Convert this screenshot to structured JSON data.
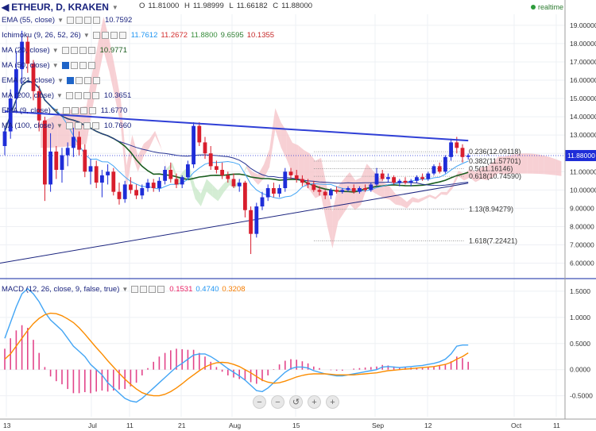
{
  "header": {
    "symbol_label": "ETHEUR, D, KRAKEN",
    "ohlc": {
      "o_label": "O",
      "o": "11.81000",
      "h_label": "H",
      "h": "11.98999",
      "l_label": "L",
      "l": "11.66182",
      "c_label": "C",
      "c": "11.88000"
    },
    "realtime_label": "realtime",
    "colors": {
      "title": "#1a237e",
      "realtime_dot": "#2e9c3c"
    }
  },
  "indicators": [
    {
      "label": "EMA (55, close)",
      "values": [
        {
          "v": "10.7592",
          "color": "#1a237e"
        }
      ]
    },
    {
      "label": "Ichimoku (9, 26, 52, 26)",
      "values": [
        {
          "v": "11.7612",
          "color": "#2196f3"
        },
        {
          "v": "11.2672",
          "color": "#d32f2f"
        },
        {
          "v": "11.8800",
          "color": "#388e3c"
        },
        {
          "v": "9.6595",
          "color": "#2e7d32"
        },
        {
          "v": "10.1355",
          "color": "#c62828"
        }
      ]
    },
    {
      "label": "MA (20, close)",
      "values": [
        {
          "v": "10.9771",
          "color": "#1b5e20"
        }
      ]
    },
    {
      "label": "MA (50, close)",
      "values": []
    },
    {
      "label": "EMA (21, close)",
      "values": []
    },
    {
      "label": "MA (200, close)",
      "values": [
        {
          "v": "10.3651",
          "color": "#1a237e"
        }
      ]
    },
    {
      "label": "EMA (9, close)",
      "values": [
        {
          "v": "11.6770",
          "color": "#1a237e"
        }
      ]
    },
    {
      "label": "MA (100, close)",
      "values": [
        {
          "v": "10.7660",
          "color": "#1a237e"
        }
      ]
    }
  ],
  "macd_header": {
    "label": "MACD (12, 26, close, 9, false, true)",
    "values": [
      {
        "v": "0.1531",
        "color": "#e91e63"
      },
      {
        "v": "0.4740",
        "color": "#2196f3"
      },
      {
        "v": "0.3208",
        "color": "#f57c00"
      }
    ]
  },
  "chart_data": {
    "type": "candlestick",
    "price_axis": {
      "ticks": [
        "19.00000",
        "18.00000",
        "17.00000",
        "16.00000",
        "15.00000",
        "14.00000",
        "13.00000",
        "12.00000",
        "11.00000",
        "10.00000",
        "9.00000",
        "8.00000",
        "7.00000",
        "6.00000"
      ],
      "tick_values": [
        19,
        18,
        17,
        16,
        15,
        14,
        13,
        12,
        11,
        10,
        9,
        8,
        7,
        6
      ],
      "range": [
        5.2,
        19.6
      ],
      "last_price": 11.88,
      "last_price_label": "11.88000"
    },
    "time_axis": {
      "ticks": [
        "13",
        "Jul",
        "11",
        "21",
        "Aug",
        "15",
        "Sep",
        "12",
        "Oct",
        "11"
      ],
      "tick_x": [
        8,
        115,
        163,
        228,
        292,
        372,
        472,
        538,
        647,
        700
      ]
    },
    "candles_ohlc": [
      [
        12.4,
        13.4,
        11.9,
        13.2
      ],
      [
        13.2,
        15.5,
        12.8,
        15.0
      ],
      [
        15.0,
        17.6,
        14.2,
        16.6
      ],
      [
        16.6,
        18.7,
        15.8,
        18.1
      ],
      [
        18.1,
        18.4,
        16.4,
        16.9
      ],
      [
        16.9,
        17.1,
        14.9,
        15.4
      ],
      [
        15.4,
        15.7,
        13.2,
        13.8
      ],
      [
        13.8,
        14.0,
        9.4,
        10.3
      ],
      [
        10.3,
        13.1,
        9.9,
        12.1
      ],
      [
        12.1,
        12.4,
        10.6,
        11.1
      ],
      [
        11.1,
        12.3,
        10.4,
        11.9
      ],
      [
        11.9,
        12.6,
        11.3,
        12.3
      ],
      [
        12.3,
        13.4,
        11.8,
        12.9
      ],
      [
        12.9,
        13.2,
        11.9,
        12.2
      ],
      [
        12.2,
        12.5,
        10.7,
        11.0
      ],
      [
        11.0,
        11.7,
        10.3,
        11.3
      ],
      [
        11.3,
        11.6,
        10.1,
        10.4
      ],
      [
        10.4,
        11.1,
        9.6,
        10.8
      ],
      [
        10.8,
        11.4,
        10.3,
        11.0
      ],
      [
        11.0,
        11.2,
        9.7,
        9.9
      ],
      [
        9.9,
        10.4,
        9.2,
        9.5
      ],
      [
        9.5,
        10.5,
        9.3,
        10.3
      ],
      [
        10.3,
        10.7,
        9.8,
        10.0
      ],
      [
        10.0,
        10.3,
        9.5,
        9.7
      ],
      [
        9.7,
        10.3,
        9.5,
        10.1
      ],
      [
        10.1,
        10.6,
        9.9,
        10.4
      ],
      [
        10.4,
        10.6,
        9.9,
        10.1
      ],
      [
        10.1,
        10.7,
        9.9,
        10.5
      ],
      [
        10.5,
        11.3,
        10.3,
        11.1
      ],
      [
        11.1,
        11.5,
        10.4,
        10.6
      ],
      [
        10.6,
        10.9,
        10.1,
        10.3
      ],
      [
        10.3,
        10.8,
        10.1,
        10.7
      ],
      [
        10.7,
        11.6,
        10.6,
        11.4
      ],
      [
        11.4,
        13.7,
        11.2,
        13.5
      ],
      [
        13.5,
        13.7,
        12.4,
        12.6
      ],
      [
        12.6,
        12.9,
        11.7,
        12.0
      ],
      [
        12.0,
        12.4,
        11.1,
        11.3
      ],
      [
        11.3,
        11.6,
        10.9,
        11.1
      ],
      [
        11.1,
        11.5,
        10.6,
        10.8
      ],
      [
        10.8,
        11.0,
        10.4,
        10.6
      ],
      [
        10.6,
        10.9,
        10.1,
        10.2
      ],
      [
        10.2,
        10.6,
        9.9,
        10.4
      ],
      [
        10.4,
        10.5,
        8.5,
        8.9
      ],
      [
        8.9,
        9.1,
        6.5,
        7.6
      ],
      [
        7.6,
        9.3,
        7.4,
        9.1
      ],
      [
        9.1,
        9.9,
        8.9,
        9.6
      ],
      [
        9.6,
        10.3,
        9.4,
        10.1
      ],
      [
        10.1,
        10.4,
        9.6,
        9.8
      ],
      [
        9.8,
        10.3,
        9.6,
        10.1
      ],
      [
        10.1,
        11.2,
        9.9,
        11.0
      ],
      [
        11.0,
        11.2,
        10.6,
        10.8
      ],
      [
        10.8,
        11.1,
        10.4,
        10.6
      ],
      [
        10.6,
        10.8,
        10.2,
        10.4
      ],
      [
        10.4,
        10.6,
        10.1,
        10.3
      ],
      [
        10.3,
        10.5,
        9.9,
        10.0
      ],
      [
        10.0,
        10.2,
        9.7,
        9.9
      ],
      [
        9.9,
        10.0,
        9.5,
        9.7
      ],
      [
        9.7,
        10.1,
        9.5,
        10.0
      ],
      [
        10.0,
        10.2,
        9.8,
        9.9
      ],
      [
        9.9,
        10.1,
        9.8,
        10.0
      ],
      [
        10.0,
        10.2,
        9.9,
        10.1
      ],
      [
        10.1,
        10.3,
        9.8,
        9.9
      ],
      [
        9.9,
        10.2,
        9.8,
        10.1
      ],
      [
        10.1,
        10.3,
        9.9,
        10.0
      ],
      [
        10.0,
        10.4,
        9.9,
        10.3
      ],
      [
        10.3,
        11.2,
        10.2,
        10.9
      ],
      [
        10.9,
        11.1,
        10.5,
        10.6
      ],
      [
        10.6,
        10.9,
        10.4,
        10.7
      ],
      [
        10.7,
        10.8,
        10.3,
        10.4
      ],
      [
        10.4,
        10.6,
        10.2,
        10.5
      ],
      [
        10.5,
        10.7,
        10.3,
        10.4
      ],
      [
        10.4,
        10.6,
        10.2,
        10.5
      ],
      [
        10.5,
        10.8,
        10.4,
        10.7
      ],
      [
        10.7,
        10.9,
        10.5,
        10.6
      ],
      [
        10.6,
        11.0,
        10.5,
        10.9
      ],
      [
        10.9,
        11.4,
        10.8,
        11.3
      ],
      [
        11.3,
        11.5,
        10.9,
        11.0
      ],
      [
        11.0,
        11.9,
        10.9,
        11.8
      ],
      [
        11.8,
        12.8,
        11.6,
        12.6
      ],
      [
        12.6,
        12.9,
        12.0,
        12.3
      ],
      [
        12.3,
        12.5,
        11.5,
        11.8
      ],
      [
        11.81,
        11.98999,
        11.66182,
        11.88
      ]
    ],
    "fibonacci": [
      {
        "label": "0.236(12.09118)",
        "value": 12.09118
      },
      {
        "label": "0.382(11.57701)",
        "value": 11.57701
      },
      {
        "label": "0.5(11.16146)",
        "value": 11.16146
      },
      {
        "label": "0.618(10.74590)",
        "value": 10.7459
      },
      {
        "label": "1.13(8.94279)",
        "value": 8.94279
      },
      {
        "label": "1.618(7.22421)",
        "value": 7.22421
      }
    ],
    "trendline": {
      "from": {
        "bar": 0,
        "price": 14.3
      },
      "to": {
        "bar": 81,
        "price": 12.7
      }
    },
    "macd": {
      "axis_ticks": [
        "1.5000",
        "1.0000",
        "0.5000",
        "0.0000",
        "-0.5000"
      ],
      "axis_values": [
        1.5,
        1.0,
        0.5,
        0.0,
        -0.5
      ],
      "range": [
        -0.9,
        1.65
      ],
      "macd_line": [
        0.6,
        0.9,
        1.2,
        1.45,
        1.55,
        1.45,
        1.3,
        1.1,
        0.95,
        0.85,
        0.75,
        0.6,
        0.45,
        0.35,
        0.25,
        0.1,
        0.0,
        -0.1,
        -0.25,
        -0.35,
        -0.45,
        -0.55,
        -0.6,
        -0.62,
        -0.55,
        -0.45,
        -0.35,
        -0.25,
        -0.15,
        -0.05,
        0.05,
        0.12,
        0.2,
        0.28,
        0.3,
        0.3,
        0.25,
        0.18,
        0.1,
        0.02,
        -0.05,
        -0.12,
        -0.2,
        -0.3,
        -0.4,
        -0.42,
        -0.35,
        -0.25,
        -0.15,
        -0.05,
        0.02,
        0.05,
        0.05,
        0.03,
        -0.02,
        -0.05,
        -0.08,
        -0.1,
        -0.12,
        -0.12,
        -0.1,
        -0.08,
        -0.06,
        -0.04,
        -0.02,
        0.0,
        0.05,
        0.06,
        0.05,
        0.04,
        0.05,
        0.06,
        0.07,
        0.08,
        0.1,
        0.12,
        0.15,
        0.2,
        0.3,
        0.45,
        0.47,
        0.47
      ],
      "signal_line": [
        0.2,
        0.3,
        0.45,
        0.6,
        0.75,
        0.88,
        0.98,
        1.05,
        1.08,
        1.07,
        1.03,
        0.97,
        0.9,
        0.8,
        0.68,
        0.55,
        0.42,
        0.3,
        0.17,
        0.05,
        -0.07,
        -0.18,
        -0.28,
        -0.37,
        -0.44,
        -0.48,
        -0.5,
        -0.5,
        -0.47,
        -0.42,
        -0.35,
        -0.27,
        -0.18,
        -0.1,
        -0.02,
        0.05,
        0.1,
        0.13,
        0.14,
        0.13,
        0.1,
        0.06,
        0.0,
        -0.06,
        -0.13,
        -0.2,
        -0.24,
        -0.26,
        -0.25,
        -0.22,
        -0.18,
        -0.14,
        -0.11,
        -0.09,
        -0.08,
        -0.08,
        -0.08,
        -0.09,
        -0.1,
        -0.1,
        -0.1,
        -0.1,
        -0.09,
        -0.08,
        -0.07,
        -0.06,
        -0.04,
        -0.02,
        -0.01,
        0.0,
        0.01,
        0.02,
        0.03,
        0.04,
        0.05,
        0.06,
        0.08,
        0.1,
        0.14,
        0.2,
        0.25,
        0.32
      ]
    },
    "colors": {
      "bull": "#1e2dd8",
      "bear": "#d81e2d",
      "trendline": "#2f3fd6",
      "cloud_bear": "#f5c4c9",
      "cloud_bull": "#c9e8c9",
      "macd_line": "#42a5f5",
      "signal_line": "#fb8c00",
      "hist": "#e3458a",
      "divider": "#3f51b5"
    }
  },
  "nav_buttons": [
    "−",
    "−",
    "↺",
    "+",
    "+"
  ],
  "nav_icons": [
    "zoom-out-icon",
    "scroll-left-icon",
    "reset-icon",
    "zoom-in-icon",
    "scroll-right-icon"
  ]
}
